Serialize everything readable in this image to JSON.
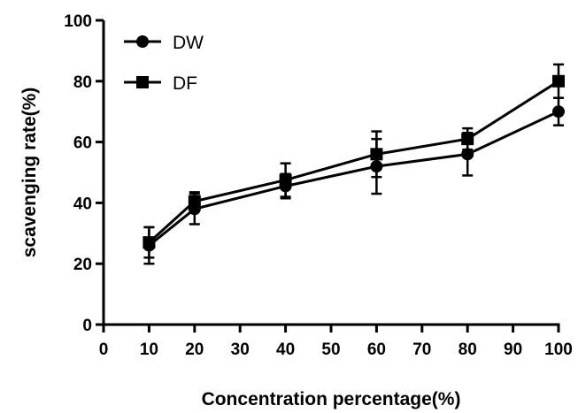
{
  "chart_data": {
    "type": "line",
    "xlabel": "Concentration percentage(%)",
    "ylabel": "scavenging rate(%)",
    "xlim": [
      0,
      100
    ],
    "ylim": [
      0,
      100
    ],
    "x_ticks": [
      0,
      10,
      20,
      30,
      40,
      50,
      60,
      70,
      80,
      90,
      100
    ],
    "y_ticks": [
      0,
      20,
      40,
      60,
      80,
      100
    ],
    "grid": false,
    "legend_position": "top-left",
    "series": [
      {
        "name": "DW",
        "marker": "circle",
        "color": "#000000",
        "x": [
          10,
          20,
          40,
          60,
          80,
          100
        ],
        "y": [
          26,
          38,
          45.5,
          52,
          56,
          70
        ],
        "error": [
          6,
          5,
          4,
          9,
          7,
          4.5
        ]
      },
      {
        "name": "DF",
        "marker": "square",
        "color": "#000000",
        "x": [
          10,
          20,
          40,
          60,
          80,
          100
        ],
        "y": [
          27,
          40.5,
          47.5,
          56,
          61,
          80
        ],
        "error": [
          5,
          3,
          5.5,
          7.5,
          3.5,
          5.5
        ]
      }
    ]
  }
}
